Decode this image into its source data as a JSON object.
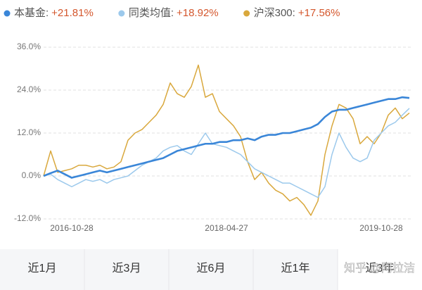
{
  "chart_data": {
    "type": "line",
    "categories": [
      null,
      null,
      null,
      null,
      "2016-10-28",
      null,
      null,
      null,
      null,
      null,
      null,
      null,
      null,
      null,
      null,
      null,
      null,
      null,
      null,
      null,
      null,
      null,
      null,
      null,
      null,
      null,
      "2018-04-27",
      null,
      null,
      null,
      null,
      null,
      null,
      null,
      null,
      null,
      null,
      null,
      null,
      null,
      null,
      null,
      null,
      null,
      null,
      null,
      null,
      null,
      "2019-10-28",
      null,
      null,
      null,
      null
    ],
    "series": [
      {
        "name": "本基金:",
        "legend_value": "+21.81%",
        "color": "#3a86d8",
        "values": [
          0,
          0.8,
          1.5,
          0.5,
          -0.5,
          0,
          0.5,
          1,
          1.5,
          1,
          1.5,
          2,
          2.5,
          3,
          3.5,
          4,
          4.5,
          5,
          6,
          7,
          7.5,
          8,
          8.5,
          9,
          9,
          9.5,
          9.5,
          10,
          10,
          10.5,
          10,
          11,
          11.5,
          11.5,
          12,
          12,
          12.5,
          13,
          13.5,
          14.5,
          16.5,
          18,
          18.5,
          18.5,
          19,
          19.5,
          20,
          20.5,
          21,
          21.5,
          21.5,
          22,
          21.8
        ]
      },
      {
        "name": "同类均值:",
        "legend_value": "+18.92%",
        "color": "#9cc9ec",
        "values": [
          0,
          0.5,
          -1,
          -2,
          -3,
          -2,
          -1,
          -1.5,
          -1,
          -2,
          -1,
          -0.5,
          0,
          1.5,
          3,
          4,
          5,
          7,
          8,
          8.5,
          7,
          6,
          9,
          12,
          9,
          8.5,
          8,
          7,
          6,
          4,
          2,
          1,
          0,
          -1,
          -2,
          -2,
          -3,
          -4,
          -5,
          -6,
          -3,
          6,
          12,
          8,
          5,
          4,
          5,
          10,
          12,
          14,
          15,
          17,
          18.9
        ]
      },
      {
        "name": "沪深300:",
        "legend_value": "+17.56%",
        "color": "#d9a83d",
        "values": [
          0,
          7,
          1,
          1.5,
          2,
          3,
          3,
          2.5,
          3,
          2,
          2.5,
          4,
          10,
          12,
          13,
          15,
          17,
          20,
          26,
          23,
          22,
          25,
          31,
          22,
          23,
          18,
          16,
          14,
          11,
          4,
          -1,
          1,
          -2,
          -4,
          -5,
          -7,
          -6,
          -8,
          -11,
          -7,
          6,
          14,
          20,
          19,
          16,
          9,
          11,
          9,
          12,
          17,
          19,
          16,
          17.6
        ]
      }
    ],
    "ylim": [
      -12,
      36
    ],
    "yticks": [
      {
        "value": -12,
        "label": "-12.0%"
      },
      {
        "value": 0,
        "label": "0.0%"
      },
      {
        "value": 12,
        "label": "12.0%"
      },
      {
        "value": 24,
        "label": "24.0%"
      },
      {
        "value": 36,
        "label": "36.0%"
      }
    ],
    "grid": true
  },
  "tabs": {
    "items": [
      "近1月",
      "近3月",
      "近6月",
      "近1年",
      "近3年"
    ],
    "selected": 4
  },
  "watermark": "知乎 @阿拉洁"
}
